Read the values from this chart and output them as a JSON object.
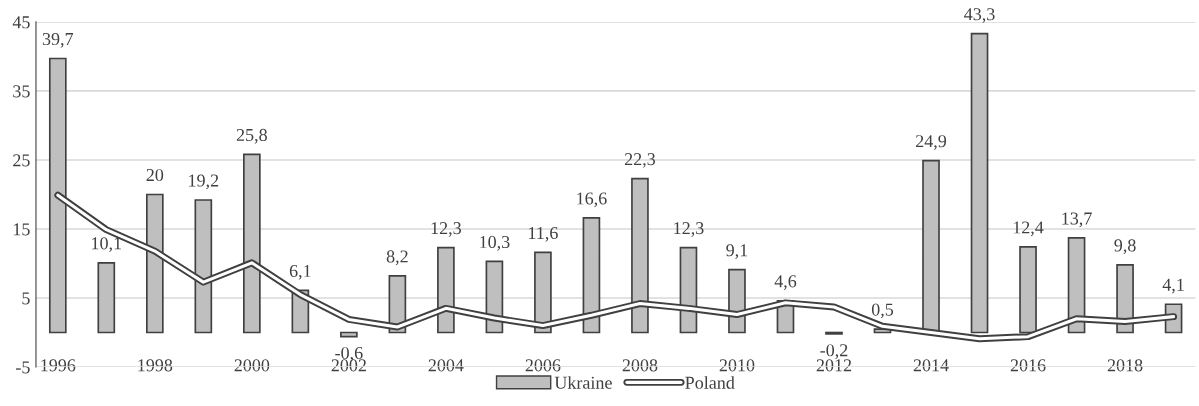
{
  "chart_data": {
    "type": "bar",
    "categories": [
      "1996",
      null,
      "1998",
      null,
      "2000",
      null,
      "2002",
      null,
      "2004",
      null,
      "2006",
      null,
      "2008",
      null,
      "2010",
      null,
      "2012",
      null,
      "2014",
      null,
      "2016",
      null,
      "2018",
      null
    ],
    "series": [
      {
        "name": "Ukraine",
        "color": "#bfbfbf",
        "values": [
          39.7,
          10.1,
          20,
          19.2,
          25.8,
          6.1,
          -0.6,
          8.2,
          12.3,
          10.3,
          11.6,
          16.6,
          22.3,
          12.3,
          9.1,
          4.6,
          -0.2,
          0.5,
          24.9,
          43.3,
          12.4,
          13.7,
          9.8,
          4.1
        ],
        "value_labels": [
          "39,7",
          "10,1",
          "20",
          "19,2",
          "25,8",
          "6,1",
          "-0,6",
          "8,2",
          "12,3",
          "10,3",
          "11,6",
          "16,6",
          "22,3",
          "12,3",
          "9,1",
          "4,6",
          "-0,2",
          "0,5",
          "24,9",
          "43,3",
          "12,4",
          "13,7",
          "9,8",
          "4,1"
        ]
      },
      {
        "name": "Poland",
        "type": "line",
        "color": "#404040",
        "values": [
          19.9,
          14.9,
          11.8,
          7.3,
          10.1,
          5.5,
          1.9,
          0.8,
          3.5,
          2.1,
          1.0,
          2.5,
          4.2,
          3.5,
          2.6,
          4.3,
          3.7,
          0.9,
          0.0,
          -0.9,
          -0.6,
          2.0,
          1.6,
          2.3
        ]
      }
    ],
    "ylim": [
      -5,
      45
    ],
    "yticks": [
      -5,
      5,
      15,
      25,
      35,
      45
    ],
    "grid": "y",
    "legend": "bottom"
  }
}
